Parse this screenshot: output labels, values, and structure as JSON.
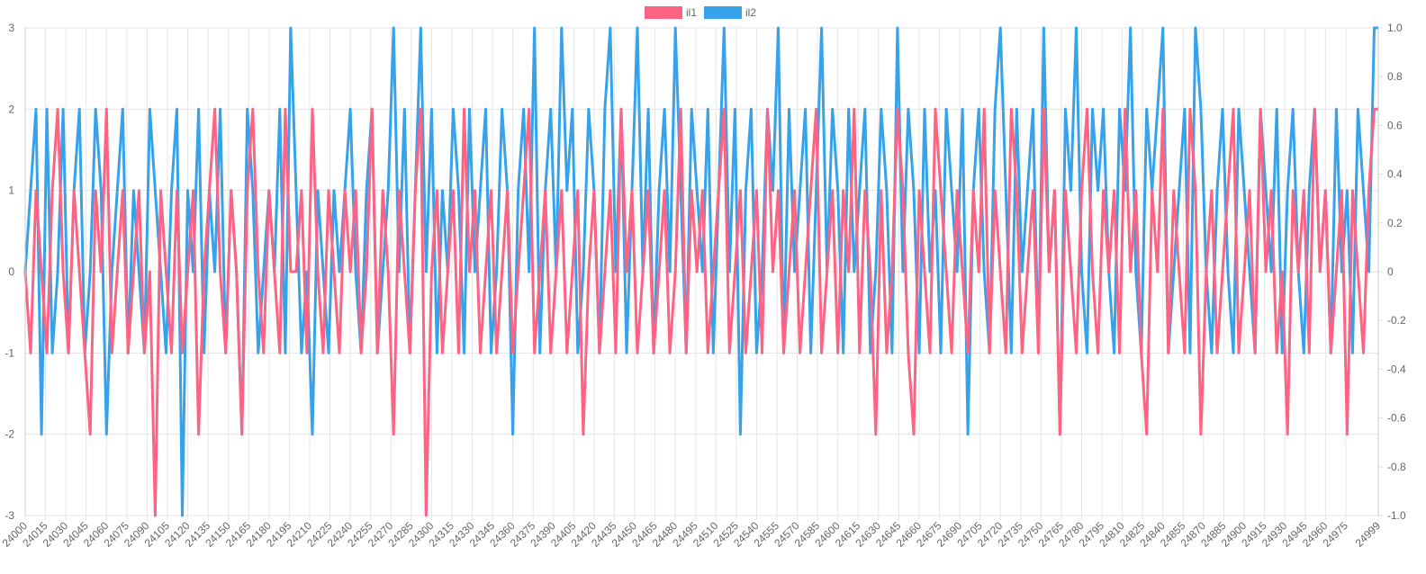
{
  "chart_data": {
    "type": "line",
    "title": "",
    "xlabel": "",
    "ylabel": "",
    "legend_position": "top-center",
    "grid": true,
    "x_start": 24000,
    "x_step": 4,
    "xlim": [
      24000,
      24999
    ],
    "ylim": [
      -3,
      3
    ],
    "y_ticks": [
      "-3",
      "-2",
      "-1",
      "0",
      "1",
      "2",
      "3"
    ],
    "y2lim": [
      -1.0,
      1.0
    ],
    "y2_ticks": [
      "-1.0",
      "-0.8",
      "-0.6",
      "-0.4",
      "-0.2",
      "0",
      "0.2",
      "0.4",
      "0.6",
      "0.8",
      "1.0"
    ],
    "x_ticks": [
      "24000",
      "24015",
      "24030",
      "24045",
      "24060",
      "24075",
      "24090",
      "24105",
      "24120",
      "24135",
      "24150",
      "24165",
      "24180",
      "24195",
      "24210",
      "24225",
      "24240",
      "24255",
      "24270",
      "24285",
      "24300",
      "24315",
      "24330",
      "24345",
      "24360",
      "24375",
      "24390",
      "24405",
      "24420",
      "24435",
      "24450",
      "24465",
      "24480",
      "24495",
      "24510",
      "24525",
      "24540",
      "24555",
      "24570",
      "24585",
      "24600",
      "24615",
      "24630",
      "24645",
      "24660",
      "24675",
      "24690",
      "24705",
      "24720",
      "24735",
      "24750",
      "24765",
      "24780",
      "24795",
      "24810",
      "24825",
      "24840",
      "24855",
      "24870",
      "24885",
      "24900",
      "24915",
      "24930",
      "24945",
      "24960",
      "24975",
      "24999"
    ],
    "series": [
      {
        "name": "il1",
        "color": "#ff6384",
        "values": [
          0,
          -1,
          1,
          0,
          -1,
          1,
          2,
          0,
          -1,
          1,
          0,
          -1,
          -2,
          1,
          0,
          2,
          -1,
          0,
          1,
          -1,
          0,
          1,
          -1,
          0,
          -3,
          1,
          0,
          -1,
          1,
          -1,
          0,
          1,
          -2,
          0,
          1,
          2,
          0,
          -1,
          1,
          0,
          -2,
          1,
          2,
          0,
          -1,
          1,
          0,
          -1,
          2,
          0,
          0,
          1,
          -1,
          2,
          0,
          -1,
          1,
          0,
          -1,
          1,
          0,
          1,
          -1,
          0,
          2,
          -1,
          1,
          0,
          -2,
          1,
          0,
          -1,
          1,
          2,
          -3,
          0,
          1,
          -1,
          0,
          1,
          -1,
          2,
          0,
          1,
          -1,
          0,
          1,
          -1,
          0,
          1,
          -1,
          0,
          1,
          2,
          -1,
          0,
          1,
          -1,
          0,
          1,
          -1,
          0,
          1,
          -2,
          0,
          1,
          -1,
          0,
          1,
          -1,
          2,
          0,
          1,
          -1,
          0,
          1,
          -1,
          0,
          1,
          -1,
          0,
          2,
          -1,
          1,
          0,
          1,
          -1,
          0,
          1,
          2,
          -1,
          0,
          1,
          -1,
          0,
          1,
          -1,
          2,
          0,
          1,
          -1,
          0,
          1,
          -1,
          0,
          1,
          2,
          -1,
          0,
          1,
          -1,
          1,
          0,
          2,
          -1,
          1,
          0,
          -2,
          1,
          -1,
          0,
          2,
          1,
          -1,
          -2,
          1,
          0,
          -1,
          2,
          1,
          0,
          -1,
          1,
          0,
          -1,
          1,
          0,
          2,
          -1,
          1,
          0,
          -1,
          2,
          1,
          -1,
          0,
          1,
          -1,
          2,
          0,
          1,
          -2,
          1,
          0,
          -1,
          1,
          2,
          0,
          -1,
          1,
          0,
          1,
          -1,
          2,
          0,
          1,
          -1,
          -2,
          1,
          0,
          2,
          -1,
          1,
          0,
          -1,
          2,
          1,
          -2,
          0,
          1,
          -1,
          0,
          1,
          2,
          -1,
          0,
          1,
          -1,
          2,
          0,
          1,
          -1,
          0,
          -2,
          1,
          0,
          1,
          -1,
          2,
          0,
          1,
          -1,
          0,
          1,
          -2,
          1,
          0,
          -1,
          1,
          2
        ]
      },
      {
        "name": "il2",
        "color": "#36a2eb",
        "values": [
          0,
          1,
          2,
          -2,
          2,
          -1,
          0,
          2,
          -1,
          1,
          2,
          -1,
          0,
          2,
          1,
          -2,
          0,
          1,
          2,
          -1,
          1,
          0,
          -1,
          2,
          1,
          0,
          -1,
          1,
          2,
          -3,
          1,
          0,
          2,
          -1,
          1,
          0,
          2,
          -1,
          1,
          0,
          -2,
          2,
          1,
          -1,
          0,
          1,
          0,
          2,
          -1,
          3,
          1,
          -1,
          0,
          -2,
          1,
          0,
          -1,
          1,
          0,
          1,
          2,
          0,
          -1,
          1,
          2,
          -1,
          0,
          1,
          3,
          0,
          2,
          -1,
          1,
          3,
          0,
          2,
          -1,
          1,
          0,
          2,
          1,
          -1,
          2,
          0,
          1,
          2,
          -1,
          0,
          2,
          1,
          -2,
          1,
          2,
          0,
          3,
          -1,
          1,
          2,
          0,
          3,
          1,
          2,
          -1,
          0,
          2,
          1,
          -1,
          2,
          3,
          0,
          2,
          -1,
          1,
          3,
          0,
          2,
          -1,
          1,
          2,
          0,
          3,
          1,
          -1,
          2,
          1,
          0,
          2,
          -1,
          1,
          3,
          0,
          2,
          -2,
          1,
          2,
          -1,
          0,
          2,
          1,
          3,
          -1,
          2,
          0,
          1,
          2,
          -1,
          1,
          3,
          0,
          2,
          1,
          -1,
          2,
          0,
          1,
          2,
          -1,
          0,
          2,
          1,
          -1,
          3,
          0,
          2,
          1,
          -1,
          2,
          0,
          1,
          -1,
          2,
          1,
          0,
          2,
          -2,
          1,
          2,
          0,
          -1,
          2,
          3,
          1,
          -1,
          2,
          0,
          1,
          2,
          -1,
          3,
          0,
          1,
          -2,
          2,
          1,
          3,
          0,
          -1,
          2,
          1,
          2,
          0,
          -1,
          2,
          1,
          3,
          0,
          -1,
          2,
          1,
          2,
          3,
          -1,
          0,
          1,
          2,
          -1,
          3,
          2,
          0,
          -1,
          1,
          2,
          0,
          -1,
          2,
          1,
          0,
          -1,
          2,
          1,
          0,
          2,
          -1,
          1,
          2,
          0,
          -1,
          1,
          2,
          0,
          1,
          -1,
          2,
          0,
          1,
          -1,
          2,
          1,
          0,
          3
        ]
      }
    ]
  }
}
